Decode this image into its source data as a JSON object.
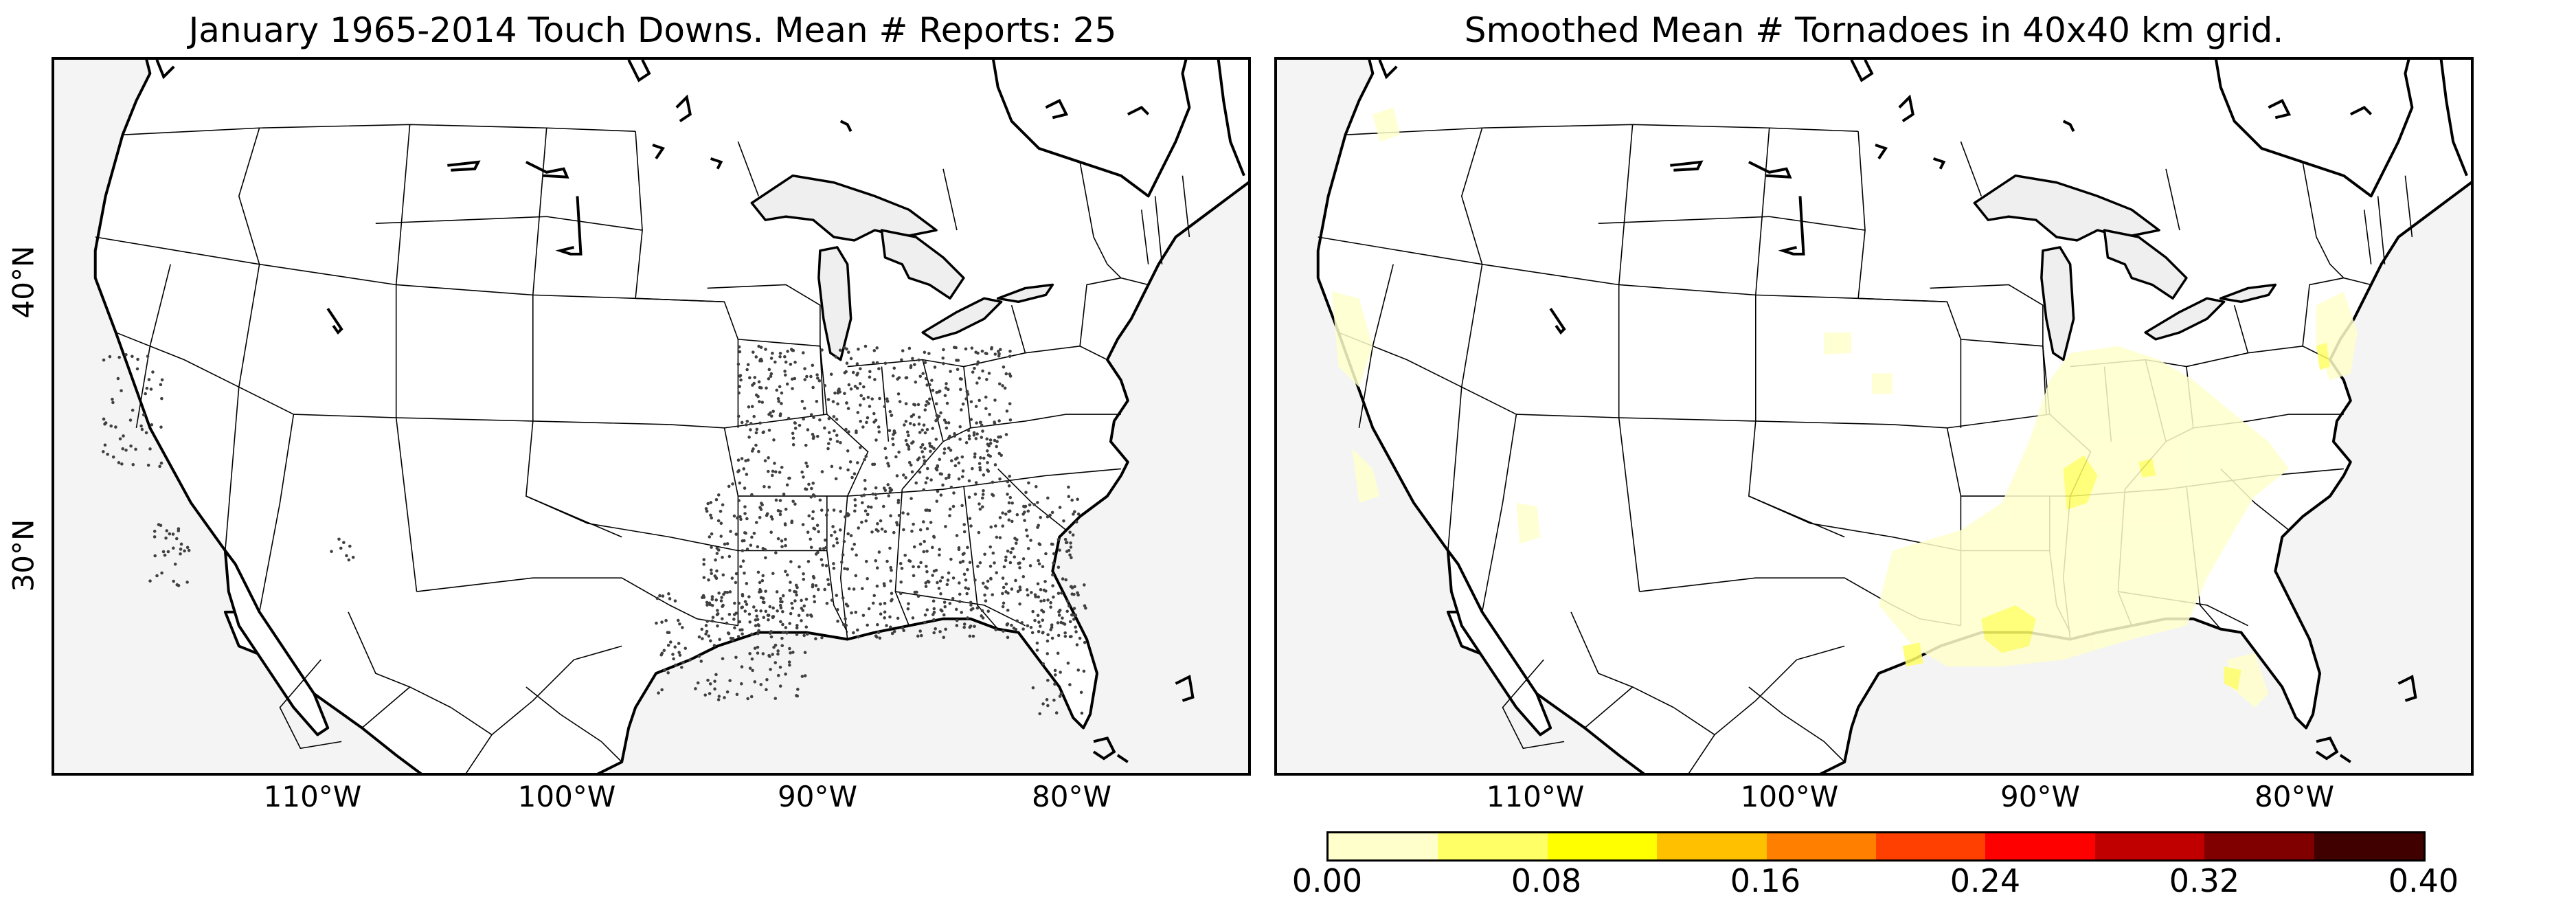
{
  "left_panel": {
    "title": "January 1965-2014 Touch Downs. Mean # Reports: 25"
  },
  "right_panel": {
    "title": "Smoothed Mean # Tornadoes in 40x40 km grid."
  },
  "axes": {
    "longitude_labels": [
      "110°W",
      "100°W",
      "90°W",
      "80°W"
    ],
    "latitude_labels": [
      "40°N",
      "30°N"
    ]
  },
  "colorbar": {
    "tick_labels": [
      "0.00",
      "0.08",
      "0.16",
      "0.24",
      "0.32",
      "0.40"
    ],
    "colors": [
      "#ffffcc",
      "#ffff66",
      "#ffff00",
      "#ffc000",
      "#ff8000",
      "#ff4000",
      "#ff0000",
      "#c00000",
      "#800000",
      "#400000"
    ],
    "range": [
      0.0,
      0.4
    ]
  },
  "colors": {
    "land": "#ffffff",
    "water": "#f4f4f4",
    "report_dot": "#404040"
  }
}
